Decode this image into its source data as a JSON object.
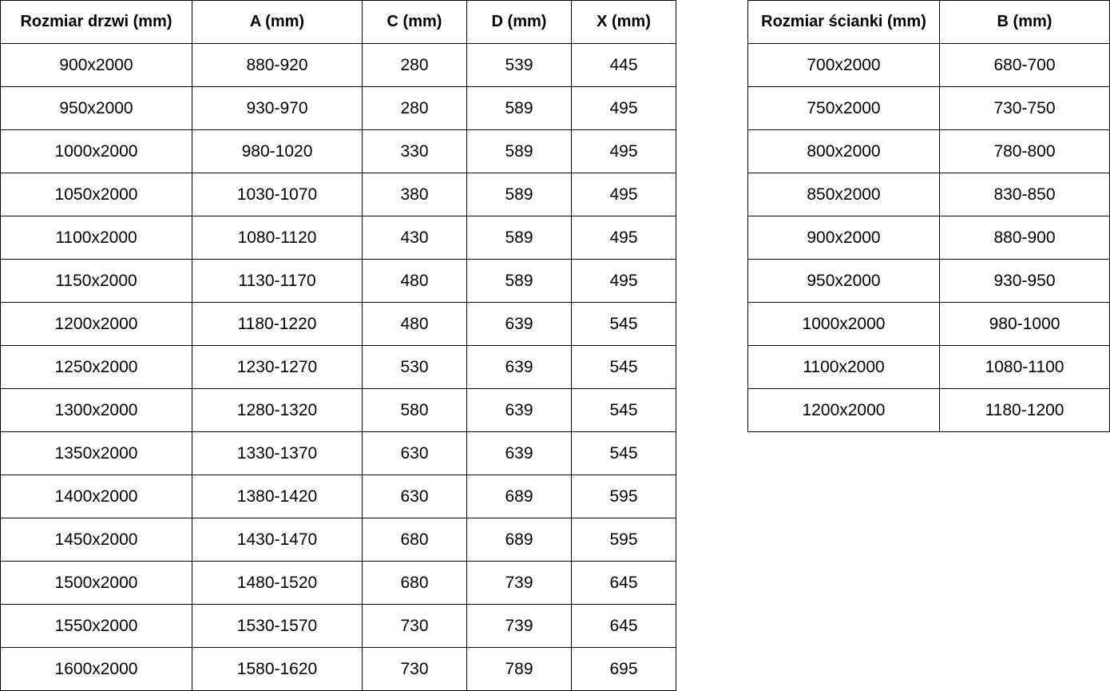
{
  "doors_table": {
    "headers": [
      "Rozmiar drzwi (mm)",
      "A (mm)",
      "C (mm)",
      "D (mm)",
      "X (mm)"
    ],
    "rows": [
      [
        "900x2000",
        "880-920",
        "280",
        "539",
        "445"
      ],
      [
        "950x2000",
        "930-970",
        "280",
        "589",
        "495"
      ],
      [
        "1000x2000",
        "980-1020",
        "330",
        "589",
        "495"
      ],
      [
        "1050x2000",
        "1030-1070",
        "380",
        "589",
        "495"
      ],
      [
        "1100x2000",
        "1080-1120",
        "430",
        "589",
        "495"
      ],
      [
        "1150x2000",
        "1130-1170",
        "480",
        "589",
        "495"
      ],
      [
        "1200x2000",
        "1180-1220",
        "480",
        "639",
        "545"
      ],
      [
        "1250x2000",
        "1230-1270",
        "530",
        "639",
        "545"
      ],
      [
        "1300x2000",
        "1280-1320",
        "580",
        "639",
        "545"
      ],
      [
        "1350x2000",
        "1330-1370",
        "630",
        "639",
        "545"
      ],
      [
        "1400x2000",
        "1380-1420",
        "630",
        "689",
        "595"
      ],
      [
        "1450x2000",
        "1430-1470",
        "680",
        "689",
        "595"
      ],
      [
        "1500x2000",
        "1480-1520",
        "680",
        "739",
        "645"
      ],
      [
        "1550x2000",
        "1530-1570",
        "730",
        "739",
        "645"
      ],
      [
        "1600x2000",
        "1580-1620",
        "730",
        "789",
        "695"
      ]
    ]
  },
  "panels_table": {
    "headers": [
      "Rozmiar ścianki (mm)",
      "B (mm)"
    ],
    "rows": [
      [
        "700x2000",
        "680-700"
      ],
      [
        "750x2000",
        "730-750"
      ],
      [
        "800x2000",
        "780-800"
      ],
      [
        "850x2000",
        "830-850"
      ],
      [
        "900x2000",
        "880-900"
      ],
      [
        "950x2000",
        "930-950"
      ],
      [
        "1000x2000",
        "980-1000"
      ],
      [
        "1100x2000",
        "1080-1100"
      ],
      [
        "1200x2000",
        "1180-1200"
      ]
    ]
  }
}
